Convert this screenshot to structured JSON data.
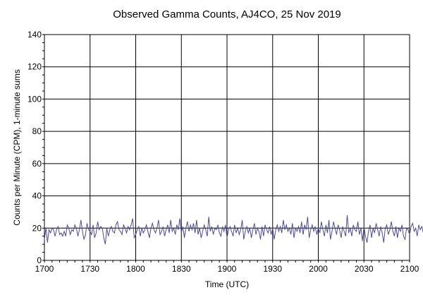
{
  "chart_data": {
    "type": "line",
    "title": "Observed Gamma Counts, AJ4CO, 25 Nov 2019",
    "xlabel": "Time (UTC)",
    "ylabel": "Counts per Minute (CPM), 1-minute sums",
    "x_ticks": [
      "1700",
      "1730",
      "1800",
      "1830",
      "1900",
      "1930",
      "2000",
      "2030",
      "2100"
    ],
    "y_ticks": [
      0,
      20,
      40,
      60,
      80,
      100,
      120,
      140
    ],
    "xlim_minutes_utc": [
      "17:00",
      "21:00"
    ],
    "ylim": [
      0,
      140
    ],
    "grid": true,
    "line_color": "#4b4b9a",
    "series": [
      {
        "x_start": "17:00",
        "x_step_minutes": 1,
        "values": [
          13,
          20,
          11,
          19,
          17,
          20,
          19,
          15,
          19,
          21,
          16,
          17,
          15,
          18,
          15,
          22,
          20,
          16,
          19,
          18,
          22,
          20,
          15,
          19,
          25,
          18,
          13,
          16,
          23,
          19,
          18,
          16,
          22,
          14,
          17,
          24,
          19,
          21,
          20,
          14,
          10,
          20,
          15,
          19,
          21,
          18,
          17,
          22,
          24,
          19,
          18,
          16,
          22,
          20,
          17,
          21,
          19,
          22,
          26,
          14,
          16,
          19,
          21,
          15,
          20,
          17,
          19,
          22,
          18,
          14,
          20,
          23,
          19,
          17,
          20,
          25,
          16,
          18,
          21,
          15,
          19,
          22,
          17,
          25,
          18,
          20,
          16,
          22,
          19,
          26,
          17,
          21,
          14,
          20,
          24,
          18,
          22,
          19,
          23,
          17,
          25,
          16,
          20,
          14,
          18,
          22,
          19,
          15,
          27,
          18,
          21,
          16,
          20,
          19,
          22,
          17,
          15,
          21,
          18,
          22,
          14,
          19,
          21,
          18,
          15,
          22,
          17,
          20,
          16,
          19,
          25,
          13,
          18,
          21,
          17,
          20,
          14,
          19,
          23,
          16,
          20,
          18,
          13,
          21,
          15,
          22,
          19,
          17,
          21,
          16,
          20,
          13,
          19,
          22,
          18,
          21,
          17,
          25,
          19,
          22,
          18,
          20,
          16,
          23,
          14,
          20,
          18,
          21,
          17,
          24,
          16,
          22,
          19,
          27,
          14,
          19,
          22,
          18,
          21,
          16,
          20,
          17,
          24,
          19,
          15,
          22,
          17,
          25,
          13,
          18,
          24,
          20,
          16,
          22,
          19,
          14,
          21,
          18,
          15,
          28,
          17,
          20,
          15,
          22,
          19,
          18,
          24,
          16,
          20,
          12,
          21,
          15,
          11,
          18,
          22,
          14,
          20,
          17,
          23,
          19,
          15,
          21,
          17,
          11,
          20,
          22,
          16,
          19,
          24,
          18,
          15,
          21,
          14,
          20,
          18,
          22,
          15,
          13,
          20,
          19,
          16,
          21,
          23,
          18,
          20,
          15,
          22,
          19,
          21,
          17,
          14,
          20,
          18,
          16,
          21,
          19,
          15,
          18,
          20
        ]
      }
    ]
  }
}
